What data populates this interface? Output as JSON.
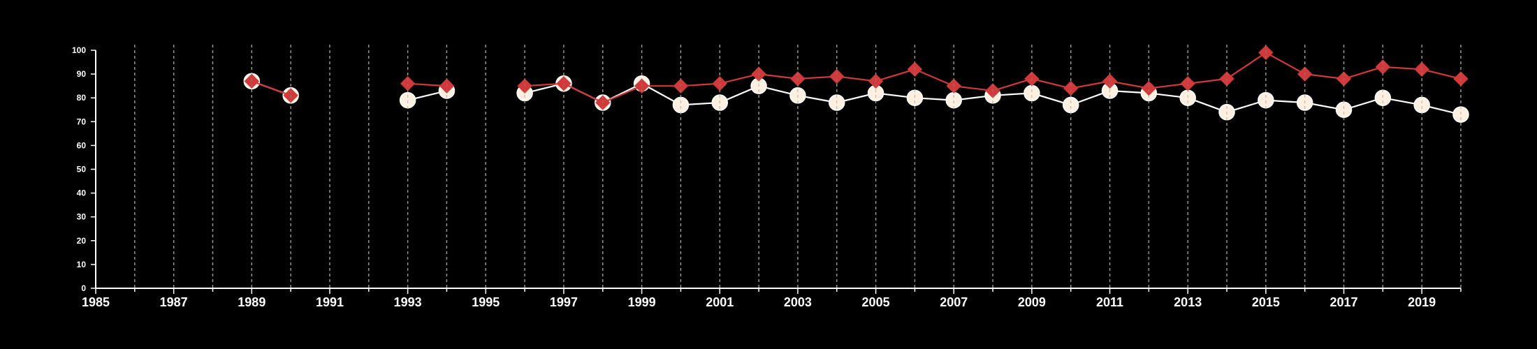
{
  "chart_data": {
    "type": "line",
    "title": "",
    "xlabel": "",
    "ylabel": "",
    "xlim": [
      1985,
      2020
    ],
    "ylim": [
      0,
      100
    ],
    "x_ticks": [
      1985,
      1987,
      1989,
      1991,
      1993,
      1995,
      1997,
      1999,
      2001,
      2003,
      2005,
      2007,
      2009,
      2011,
      2013,
      2015,
      2017,
      2019
    ],
    "y_ticks": [
      0,
      10,
      20,
      30,
      40,
      50,
      60,
      70,
      80,
      90,
      100
    ],
    "grid": "vertical dashed lines at every year",
    "legend": "none",
    "background_color": "#000000",
    "axis_color": "#ffffff",
    "grid_color": "#bbbbbb",
    "series": [
      {
        "marker": "circle",
        "color": "#ffffff",
        "marker_fill": "#fdf0e0",
        "points": [
          {
            "x": 1989,
            "y": 87
          },
          {
            "x": 1990,
            "y": 81
          },
          {
            "x": 1993,
            "y": 79
          },
          {
            "x": 1994,
            "y": 83
          },
          {
            "x": 1996,
            "y": 82
          },
          {
            "x": 1997,
            "y": 86
          },
          {
            "x": 1998,
            "y": 78
          },
          {
            "x": 1999,
            "y": 86
          },
          {
            "x": 2000,
            "y": 77
          },
          {
            "x": 2001,
            "y": 78
          },
          {
            "x": 2002,
            "y": 85
          },
          {
            "x": 2003,
            "y": 81
          },
          {
            "x": 2004,
            "y": 78
          },
          {
            "x": 2005,
            "y": 82
          },
          {
            "x": 2006,
            "y": 80
          },
          {
            "x": 2007,
            "y": 79
          },
          {
            "x": 2008,
            "y": 81
          },
          {
            "x": 2009,
            "y": 82
          },
          {
            "x": 2010,
            "y": 77
          },
          {
            "x": 2011,
            "y": 83
          },
          {
            "x": 2012,
            "y": 82
          },
          {
            "x": 2013,
            "y": 80
          },
          {
            "x": 2014,
            "y": 74
          },
          {
            "x": 2015,
            "y": 79
          },
          {
            "x": 2016,
            "y": 78
          },
          {
            "x": 2017,
            "y": 75
          },
          {
            "x": 2018,
            "y": 80
          },
          {
            "x": 2019,
            "y": 77
          },
          {
            "x": 2020,
            "y": 73
          }
        ]
      },
      {
        "marker": "diamond",
        "color": "#d03a3a",
        "marker_fill": "#d03a3a",
        "points": [
          {
            "x": 1989,
            "y": 87
          },
          {
            "x": 1990,
            "y": 81
          },
          {
            "x": 1993,
            "y": 86
          },
          {
            "x": 1994,
            "y": 85
          },
          {
            "x": 1996,
            "y": 85
          },
          {
            "x": 1997,
            "y": 86
          },
          {
            "x": 1998,
            "y": 78
          },
          {
            "x": 1999,
            "y": 85
          },
          {
            "x": 2000,
            "y": 85
          },
          {
            "x": 2001,
            "y": 86
          },
          {
            "x": 2002,
            "y": 90
          },
          {
            "x": 2003,
            "y": 88
          },
          {
            "x": 2004,
            "y": 89
          },
          {
            "x": 2005,
            "y": 87
          },
          {
            "x": 2006,
            "y": 92
          },
          {
            "x": 2007,
            "y": 85
          },
          {
            "x": 2008,
            "y": 83
          },
          {
            "x": 2009,
            "y": 88
          },
          {
            "x": 2010,
            "y": 84
          },
          {
            "x": 2011,
            "y": 87
          },
          {
            "x": 2012,
            "y": 84
          },
          {
            "x": 2013,
            "y": 86
          },
          {
            "x": 2014,
            "y": 88
          },
          {
            "x": 2015,
            "y": 99
          },
          {
            "x": 2016,
            "y": 90
          },
          {
            "x": 2017,
            "y": 88
          },
          {
            "x": 2018,
            "y": 93
          },
          {
            "x": 2019,
            "y": 92
          },
          {
            "x": 2020,
            "y": 88
          }
        ]
      }
    ]
  }
}
